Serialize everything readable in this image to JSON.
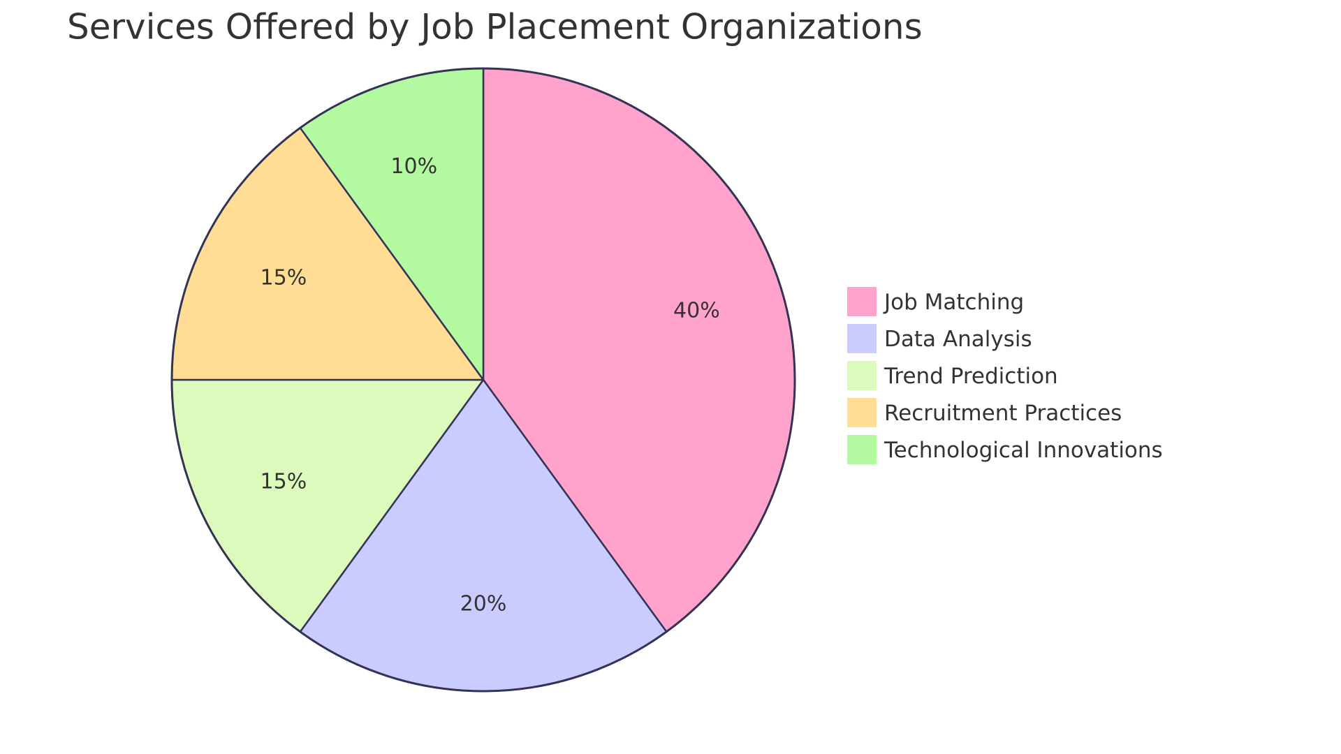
{
  "chart_data": {
    "type": "pie",
    "title": "Services Offered by Job Placement Organizations",
    "slices": [
      {
        "label": "Job Matching",
        "value": 40,
        "display": "40%",
        "color": "#FFA3CC"
      },
      {
        "label": "Data Analysis",
        "value": 20,
        "display": "20%",
        "color": "#CACBFF"
      },
      {
        "label": "Trend Prediction",
        "value": 15,
        "display": "15%",
        "color": "#DBFABB"
      },
      {
        "label": "Recruitment Practices",
        "value": 15,
        "display": "15%",
        "color": "#FFDD94"
      },
      {
        "label": "Technological Innovations",
        "value": 10,
        "display": "10%",
        "color": "#B2F9A0"
      }
    ],
    "start_angle": "top",
    "direction": "clockwise",
    "legend_position": "right"
  }
}
